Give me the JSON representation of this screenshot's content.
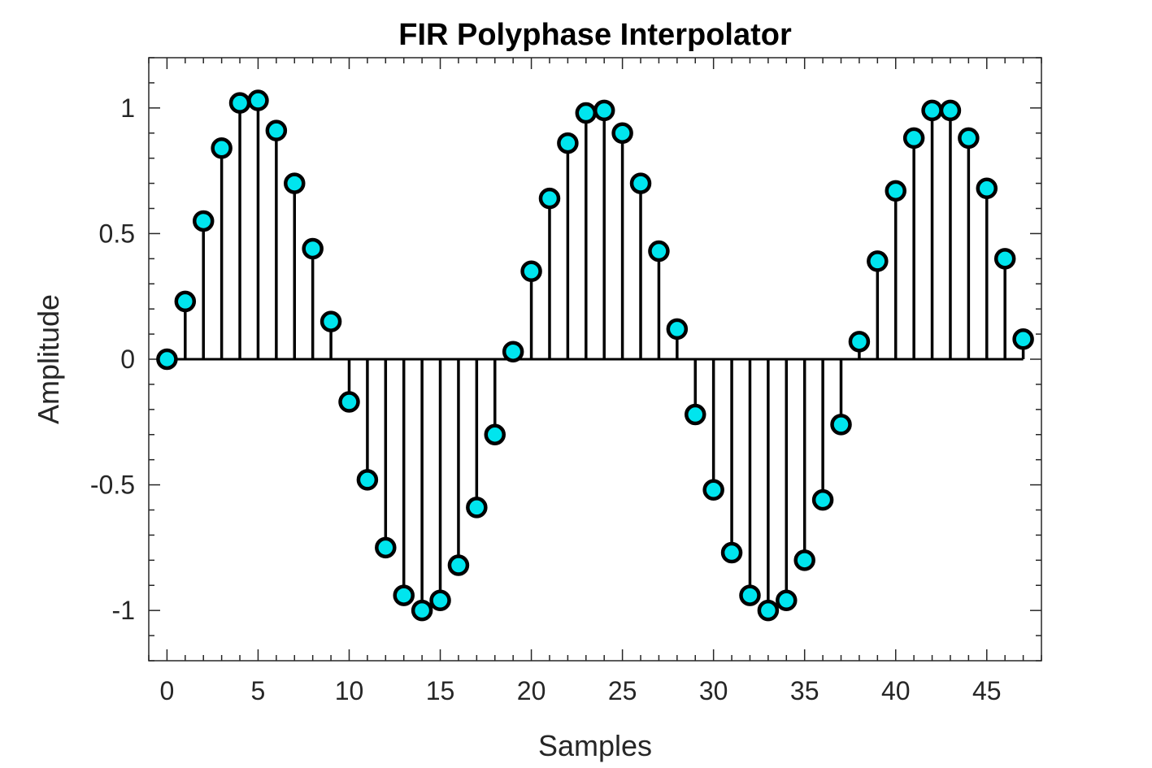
{
  "chart_data": {
    "type": "stem",
    "title": "FIR Polyphase Interpolator",
    "xlabel": "Samples",
    "ylabel": "Amplitude",
    "xlim": [
      -1,
      48
    ],
    "ylim": [
      -1.2,
      1.2
    ],
    "x_ticks": [
      0,
      5,
      10,
      15,
      20,
      25,
      30,
      35,
      40,
      45
    ],
    "x_tick_labels": [
      "0",
      "5",
      "10",
      "15",
      "20",
      "25",
      "30",
      "35",
      "40",
      "45"
    ],
    "y_ticks": [
      -1,
      -0.5,
      0,
      0.5,
      1
    ],
    "y_tick_labels": [
      "-1",
      "-0.5",
      "0",
      "0.5",
      "1"
    ],
    "marker_face_color": "#00e5ee",
    "marker_edge_color": "#000000",
    "stem_color": "#000000",
    "grid": false,
    "x": [
      0,
      1,
      2,
      3,
      4,
      5,
      6,
      7,
      8,
      9,
      10,
      11,
      12,
      13,
      14,
      15,
      16,
      17,
      18,
      19,
      20,
      21,
      22,
      23,
      24,
      25,
      26,
      27,
      28,
      29,
      30,
      31,
      32,
      33,
      34,
      35,
      36,
      37,
      38,
      39,
      40,
      41,
      42,
      43,
      44,
      45,
      46,
      47
    ],
    "values": [
      0,
      0.23,
      0.55,
      0.84,
      1.02,
      1.03,
      0.91,
      0.7,
      0.44,
      0.15,
      -0.17,
      -0.48,
      -0.75,
      -0.94,
      -1.0,
      -0.96,
      -0.82,
      -0.59,
      -0.3,
      0.03,
      0.35,
      0.64,
      0.86,
      0.98,
      0.99,
      0.9,
      0.7,
      0.43,
      0.12,
      -0.22,
      -0.52,
      -0.77,
      -0.94,
      -1.0,
      -0.96,
      -0.8,
      -0.56,
      -0.26,
      0.07,
      0.39,
      0.67,
      0.88,
      0.99,
      0.99,
      0.88,
      0.68,
      0.4,
      0.08
    ]
  }
}
